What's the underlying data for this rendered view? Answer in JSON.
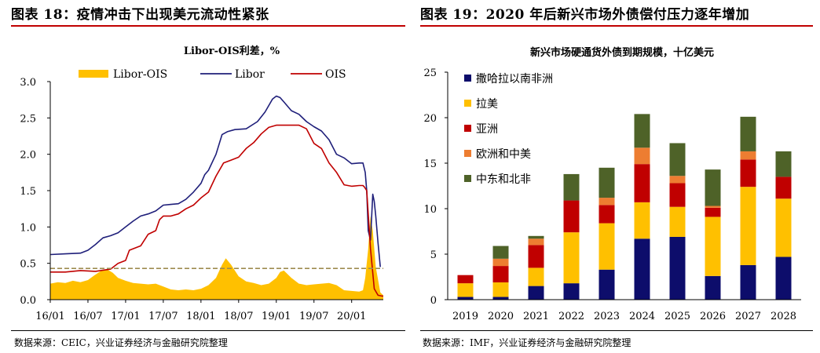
{
  "left": {
    "panel_title": "图表 18：疫情冲击下出现美元流动性紧张",
    "source": "数据来源：CEIC，兴业证券经济与金融研究院整理"
  },
  "right": {
    "panel_title": "图表 19：2020 年后新兴市场外债偿付压力逐年增加",
    "source": "数据来源：IMF，兴业证券经济与金融研究院整理"
  },
  "colors": {
    "title_rule": "#c00000",
    "libor_ois": "#ffc000",
    "libor": "#1f1f7a",
    "ois": "#c00000",
    "ref_line": "#9e8c50",
    "bar_subsaharan": "#0d0d6b",
    "bar_latam": "#ffc000",
    "bar_asia": "#c00000",
    "bar_europe_ca": "#ed7d31",
    "bar_mena": "#4e6228"
  },
  "chart_data": [
    {
      "type": "line",
      "title": "Libor-OIS利差，%",
      "legend_position": "top",
      "ylim": [
        0,
        3.0
      ],
      "yticks": [
        "0.0",
        "0.5",
        "1.0",
        "1.5",
        "2.0",
        "2.5",
        "3.0"
      ],
      "xticks": [
        "16/01",
        "16/07",
        "17/01",
        "17/07",
        "18/01",
        "18/07",
        "19/01",
        "19/07",
        "20/01"
      ],
      "x_range": [
        2016.0,
        2020.42
      ],
      "reference_line": 0.43,
      "series": [
        {
          "name": "Libor-OIS",
          "kind": "area",
          "x": [
            2016.0,
            2016.1,
            2016.2,
            2016.3,
            2016.4,
            2016.5,
            2016.58,
            2016.68,
            2016.75,
            2016.83,
            2016.9,
            2017.0,
            2017.1,
            2017.2,
            2017.3,
            2017.4,
            2017.5,
            2017.6,
            2017.7,
            2017.8,
            2017.9,
            2018.0,
            2018.1,
            2018.2,
            2018.28,
            2018.33,
            2018.4,
            2018.5,
            2018.6,
            2018.7,
            2018.8,
            2018.9,
            2019.0,
            2019.05,
            2019.1,
            2019.2,
            2019.3,
            2019.4,
            2019.5,
            2019.6,
            2019.7,
            2019.8,
            2019.9,
            2020.0,
            2020.1,
            2020.15,
            2020.18,
            2020.22,
            2020.25,
            2020.28,
            2020.32,
            2020.38,
            2020.42
          ],
          "y": [
            0.22,
            0.24,
            0.23,
            0.26,
            0.24,
            0.27,
            0.33,
            0.4,
            0.42,
            0.37,
            0.3,
            0.26,
            0.23,
            0.22,
            0.21,
            0.22,
            0.18,
            0.14,
            0.13,
            0.14,
            0.13,
            0.15,
            0.2,
            0.3,
            0.48,
            0.57,
            0.48,
            0.32,
            0.25,
            0.23,
            0.2,
            0.22,
            0.3,
            0.38,
            0.4,
            0.3,
            0.22,
            0.2,
            0.21,
            0.22,
            0.23,
            0.2,
            0.13,
            0.12,
            0.11,
            0.13,
            0.3,
            0.7,
            1.15,
            0.95,
            0.45,
            0.1,
            0.06
          ]
        },
        {
          "name": "Libor",
          "kind": "line",
          "x": [
            2016.0,
            2016.2,
            2016.4,
            2016.5,
            2016.6,
            2016.7,
            2016.8,
            2016.9,
            2017.0,
            2017.1,
            2017.2,
            2017.3,
            2017.4,
            2017.5,
            2017.6,
            2017.7,
            2017.8,
            2017.9,
            2018.0,
            2018.05,
            2018.1,
            2018.2,
            2018.28,
            2018.35,
            2018.45,
            2018.6,
            2018.75,
            2018.85,
            2018.95,
            2019.0,
            2019.05,
            2019.1,
            2019.2,
            2019.3,
            2019.4,
            2019.5,
            2019.6,
            2019.7,
            2019.8,
            2019.9,
            2020.0,
            2020.1,
            2020.15,
            2020.18,
            2020.2,
            2020.22,
            2020.25,
            2020.28,
            2020.3,
            2020.32,
            2020.35,
            2020.38
          ],
          "y": [
            0.62,
            0.63,
            0.64,
            0.68,
            0.76,
            0.85,
            0.88,
            0.92,
            1.0,
            1.08,
            1.15,
            1.18,
            1.22,
            1.3,
            1.31,
            1.32,
            1.38,
            1.48,
            1.6,
            1.72,
            1.78,
            2.0,
            2.27,
            2.31,
            2.34,
            2.35,
            2.45,
            2.58,
            2.76,
            2.8,
            2.78,
            2.72,
            2.6,
            2.55,
            2.45,
            2.38,
            2.32,
            2.2,
            2.0,
            1.95,
            1.87,
            1.88,
            1.88,
            1.75,
            1.5,
            0.95,
            0.82,
            1.45,
            1.35,
            1.15,
            0.78,
            0.45
          ]
        },
        {
          "name": "OIS",
          "kind": "line",
          "x": [
            2016.0,
            2016.2,
            2016.4,
            2016.6,
            2016.8,
            2016.9,
            2017.0,
            2017.05,
            2017.1,
            2017.2,
            2017.3,
            2017.4,
            2017.45,
            2017.5,
            2017.6,
            2017.7,
            2017.8,
            2017.9,
            2018.0,
            2018.1,
            2018.2,
            2018.3,
            2018.4,
            2018.5,
            2018.6,
            2018.7,
            2018.8,
            2018.9,
            2019.0,
            2019.1,
            2019.2,
            2019.3,
            2019.4,
            2019.5,
            2019.6,
            2019.7,
            2019.8,
            2019.9,
            2020.0,
            2020.1,
            2020.15,
            2020.17,
            2020.2,
            2020.25,
            2020.3,
            2020.35,
            2020.4,
            2020.42
          ],
          "y": [
            0.38,
            0.38,
            0.4,
            0.39,
            0.42,
            0.5,
            0.54,
            0.68,
            0.7,
            0.74,
            0.9,
            0.95,
            1.1,
            1.15,
            1.15,
            1.18,
            1.25,
            1.3,
            1.4,
            1.48,
            1.7,
            1.88,
            1.92,
            1.96,
            2.08,
            2.16,
            2.28,
            2.37,
            2.4,
            2.4,
            2.4,
            2.4,
            2.35,
            2.15,
            2.08,
            1.88,
            1.75,
            1.58,
            1.56,
            1.57,
            1.57,
            1.55,
            1.5,
            0.7,
            0.15,
            0.06,
            0.05,
            0.05
          ]
        }
      ]
    },
    {
      "type": "bar",
      "stacked": true,
      "title": "新兴市场硬通货外债到期规模，十亿美元",
      "legend_position": "top-left",
      "ylim": [
        0,
        25
      ],
      "yticks": [
        "0",
        "5",
        "10",
        "15",
        "20",
        "25"
      ],
      "categories": [
        "2019",
        "2020",
        "2021",
        "2022",
        "2023",
        "2024",
        "2025",
        "2026",
        "2027",
        "2028"
      ],
      "series": [
        {
          "name": "撒哈拉以南非洲",
          "color_key": "bar_subsaharan",
          "values": [
            0.3,
            0.3,
            1.5,
            1.8,
            3.3,
            6.7,
            6.9,
            2.6,
            3.8,
            4.7
          ]
        },
        {
          "name": "拉美",
          "color_key": "bar_latam",
          "values": [
            1.5,
            1.6,
            2.0,
            5.6,
            5.1,
            4.0,
            3.3,
            6.5,
            8.6,
            6.4
          ]
        },
        {
          "name": "亚洲",
          "color_key": "bar_asia",
          "values": [
            0.9,
            1.8,
            2.5,
            3.5,
            2.0,
            4.2,
            2.6,
            1.0,
            3.0,
            2.4
          ]
        },
        {
          "name": "欧洲和中美",
          "color_key": "bar_europe_ca",
          "values": [
            0.0,
            0.8,
            0.7,
            0.0,
            0.8,
            1.8,
            0.8,
            0.2,
            0.9,
            0.0
          ]
        },
        {
          "name": "中东和北非",
          "color_key": "bar_mena",
          "values": [
            0.0,
            1.4,
            0.3,
            2.9,
            3.3,
            3.7,
            3.6,
            4.0,
            3.8,
            2.8
          ]
        }
      ]
    }
  ]
}
